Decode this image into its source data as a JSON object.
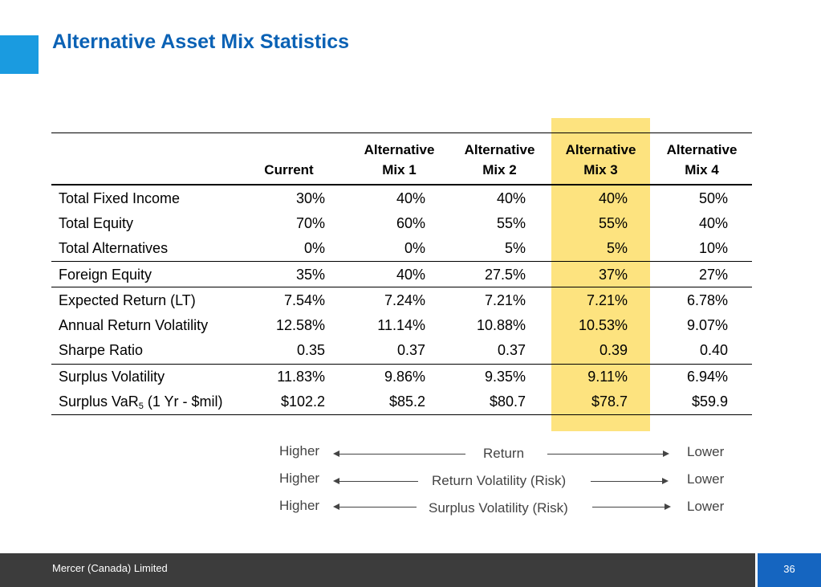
{
  "title": "Alternative Asset Mix Statistics",
  "columns": [
    {
      "line1": "",
      "line2": "Current"
    },
    {
      "line1": "Alternative",
      "line2": "Mix 1"
    },
    {
      "line1": "Alternative",
      "line2": "Mix 2"
    },
    {
      "line1": "Alternative",
      "line2": "Mix 3"
    },
    {
      "line1": "Alternative",
      "line2": "Mix 4"
    }
  ],
  "rows": [
    {
      "label": "Total Fixed Income",
      "values": [
        "30%",
        "40%",
        "40%",
        "40%",
        "50%"
      ]
    },
    {
      "label": "Total Equity",
      "values": [
        "70%",
        "60%",
        "55%",
        "55%",
        "40%"
      ]
    },
    {
      "label": "Total Alternatives",
      "values": [
        "0%",
        "0%",
        "5%",
        "5%",
        "10%"
      ]
    },
    {
      "label": "Foreign Equity",
      "values": [
        "35%",
        "40%",
        "27.5%",
        "37%",
        "27%"
      ]
    },
    {
      "label": "Expected Return (LT)",
      "values": [
        "7.54%",
        "7.24%",
        "7.21%",
        "7.21%",
        "6.78%"
      ]
    },
    {
      "label": "Annual Return Volatility",
      "values": [
        "12.58%",
        "11.14%",
        "10.88%",
        "10.53%",
        "9.07%"
      ]
    },
    {
      "label": "Sharpe Ratio",
      "values": [
        "0.35",
        "0.37",
        "0.37",
        "0.39",
        "0.40"
      ]
    },
    {
      "label": "Surplus Volatility",
      "values": [
        "11.83%",
        "9.86%",
        "9.35%",
        "9.11%",
        "6.94%"
      ]
    },
    {
      "label_prefix": "Surplus VaR",
      "label_sub": "5",
      "label_suffix": " (1 Yr - $mil)",
      "values": [
        "$102.2",
        "$85.2",
        "$80.7",
        "$78.7",
        "$59.9"
      ]
    }
  ],
  "legend": [
    {
      "left": "Higher",
      "center": "Return",
      "right": "Lower"
    },
    {
      "left": "Higher",
      "center": "Return Volatility (Risk)",
      "right": "Lower"
    },
    {
      "left": "Higher",
      "center": "Surplus Volatility (Risk)",
      "right": "Lower"
    }
  ],
  "footer": {
    "company": "Mercer (Canada) Limited",
    "page": "36"
  },
  "colors": {
    "title": "#0b62b5",
    "accent": "#1a9be0",
    "highlight": "#fde37f",
    "footer_bg": "#3c3c3c",
    "page_box": "#1565c0"
  }
}
